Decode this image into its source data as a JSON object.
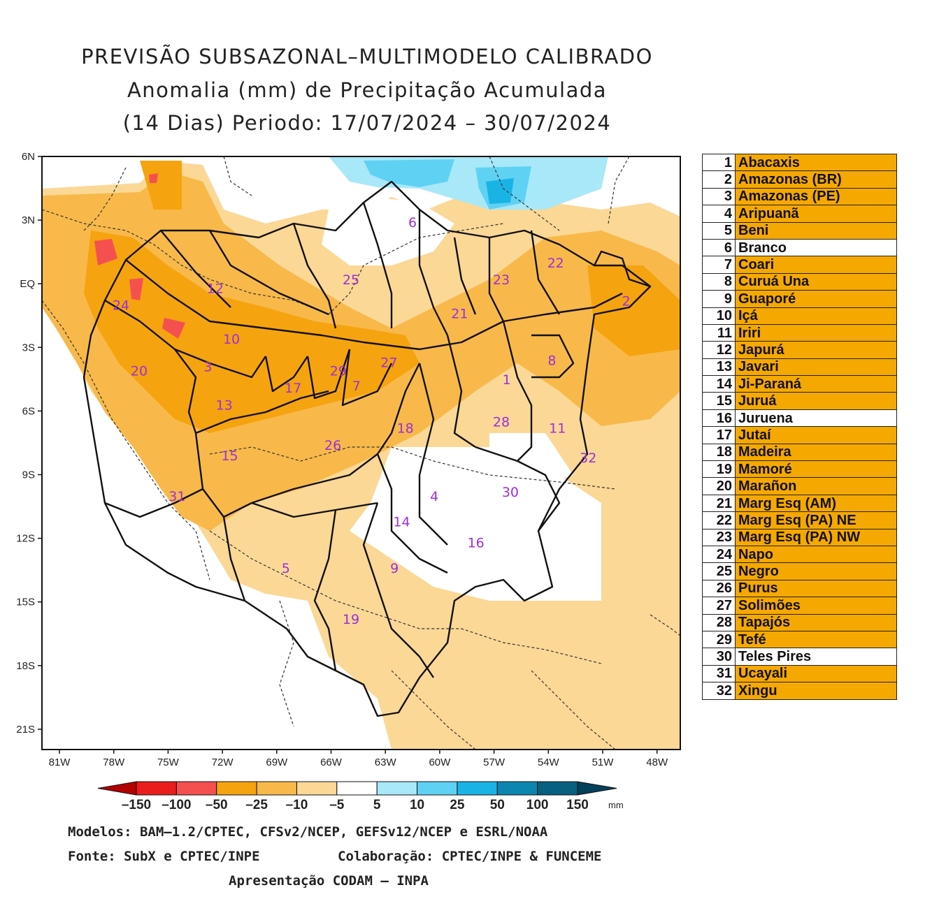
{
  "title": {
    "line1": "PREVISÃO SUBSAZONAL–MULTIMODELO CALIBRADO",
    "line2": "Anomalia (mm) de Precipitação Acumulada",
    "line3": "(14 Dias) Periodo: 17/07/2024 – 30/07/2024"
  },
  "axes": {
    "y_labels": [
      "6N",
      "3N",
      "EQ",
      "3S",
      "6S",
      "9S",
      "12S",
      "15S",
      "18S",
      "21S"
    ],
    "x_labels": [
      "81W",
      "78W",
      "75W",
      "72W",
      "69W",
      "66W",
      "63W",
      "60W",
      "57W",
      "54W",
      "51W",
      "48W"
    ]
  },
  "colorbar": {
    "labels": [
      "–150",
      "–100",
      "–50",
      "–25",
      "–10",
      "–5",
      "5",
      "10",
      "25",
      "50",
      "100",
      "150"
    ],
    "unit": "mm",
    "colors": [
      "#b20000",
      "#ea1c1c",
      "#f45050",
      "#f5a30f",
      "#f8b94a",
      "#fbd896",
      "#ffffff",
      "#a8e8f8",
      "#5fd2f3",
      "#1ab3e6",
      "#0a86b0",
      "#07607f",
      "#03405a"
    ]
  },
  "basin_labels": [
    {
      "id": "1",
      "lon": -56.3,
      "lat": -4.5
    },
    {
      "id": "2",
      "lon": -49.7,
      "lat": -0.8
    },
    {
      "id": "3",
      "lon": -72.8,
      "lat": -3.9
    },
    {
      "id": "4",
      "lon": -60.3,
      "lat": -10.0
    },
    {
      "id": "5",
      "lon": -68.5,
      "lat": -13.4
    },
    {
      "id": "6",
      "lon": -61.5,
      "lat": 2.9
    },
    {
      "id": "7",
      "lon": -64.6,
      "lat": -4.8
    },
    {
      "id": "8",
      "lon": -53.8,
      "lat": -3.6
    },
    {
      "id": "9",
      "lon": -62.5,
      "lat": -13.4
    },
    {
      "id": "10",
      "lon": -71.5,
      "lat": -2.6
    },
    {
      "id": "11",
      "lon": -53.5,
      "lat": -6.8
    },
    {
      "id": "12",
      "lon": -72.4,
      "lat": -0.2
    },
    {
      "id": "13",
      "lon": -71.9,
      "lat": -5.7
    },
    {
      "id": "14",
      "lon": -62.1,
      "lat": -11.2
    },
    {
      "id": "15",
      "lon": -71.6,
      "lat": -8.1
    },
    {
      "id": "16",
      "lon": -58.0,
      "lat": -12.2
    },
    {
      "id": "17",
      "lon": -68.1,
      "lat": -4.9
    },
    {
      "id": "18",
      "lon": -61.9,
      "lat": -6.8
    },
    {
      "id": "19",
      "lon": -64.9,
      "lat": -15.8
    },
    {
      "id": "20",
      "lon": -76.6,
      "lat": -4.1
    },
    {
      "id": "21",
      "lon": -58.9,
      "lat": -1.4
    },
    {
      "id": "22",
      "lon": -53.6,
      "lat": 1.0
    },
    {
      "id": "23",
      "lon": -56.6,
      "lat": 0.2
    },
    {
      "id": "24",
      "lon": -77.6,
      "lat": -1.0
    },
    {
      "id": "25",
      "lon": -64.9,
      "lat": 0.2
    },
    {
      "id": "26",
      "lon": -65.9,
      "lat": -7.6
    },
    {
      "id": "27",
      "lon": -62.8,
      "lat": -3.7
    },
    {
      "id": "28",
      "lon": -56.6,
      "lat": -6.5
    },
    {
      "id": "29",
      "lon": -65.6,
      "lat": -4.1
    },
    {
      "id": "30",
      "lon": -56.1,
      "lat": -9.8
    },
    {
      "id": "31",
      "lon": -74.5,
      "lat": -10.0
    },
    {
      "id": "32",
      "lon": -51.8,
      "lat": -8.2
    }
  ],
  "legend": [
    {
      "n": "1",
      "name": "Abacaxis",
      "color": "#f5a800"
    },
    {
      "n": "2",
      "name": "Amazonas (BR)",
      "color": "#f5a800"
    },
    {
      "n": "3",
      "name": "Amazonas (PE)",
      "color": "#f5a800"
    },
    {
      "n": "4",
      "name": "Aripuanã",
      "color": "#f5a800"
    },
    {
      "n": "5",
      "name": "Beni",
      "color": "#f5a800"
    },
    {
      "n": "6",
      "name": "Branco",
      "color": "#ffffff"
    },
    {
      "n": "7",
      "name": "Coari",
      "color": "#f5a800"
    },
    {
      "n": "8",
      "name": "Curuá Una",
      "color": "#f5a800"
    },
    {
      "n": "9",
      "name": "Guaporé",
      "color": "#f5a800"
    },
    {
      "n": "10",
      "name": "Içá",
      "color": "#f5a800"
    },
    {
      "n": "11",
      "name": "Iriri",
      "color": "#f5a800"
    },
    {
      "n": "12",
      "name": "Japurá",
      "color": "#f5a800"
    },
    {
      "n": "13",
      "name": "Javari",
      "color": "#f5a800"
    },
    {
      "n": "14",
      "name": "Ji-Paraná",
      "color": "#f5a800"
    },
    {
      "n": "15",
      "name": "Juruá",
      "color": "#f5a800"
    },
    {
      "n": "16",
      "name": "Juruena",
      "color": "#ffffff"
    },
    {
      "n": "17",
      "name": "Jutaí",
      "color": "#f5a800"
    },
    {
      "n": "18",
      "name": "Madeira",
      "color": "#f5a800"
    },
    {
      "n": "19",
      "name": "Mamoré",
      "color": "#f5a800"
    },
    {
      "n": "20",
      "name": "Marañon",
      "color": "#f5a800"
    },
    {
      "n": "21",
      "name": "Marg Esq (AM)",
      "color": "#f5a800"
    },
    {
      "n": "22",
      "name": "Marg Esq (PA) NE",
      "color": "#f5a800"
    },
    {
      "n": "23",
      "name": "Marg Esq (PA) NW",
      "color": "#f5a800"
    },
    {
      "n": "24",
      "name": "Napo",
      "color": "#f5a800"
    },
    {
      "n": "25",
      "name": "Negro",
      "color": "#f5a800"
    },
    {
      "n": "26",
      "name": "Purus",
      "color": "#f5a800"
    },
    {
      "n": "27",
      "name": "Solimões",
      "color": "#f5a800"
    },
    {
      "n": "28",
      "name": "Tapajós",
      "color": "#f5a800"
    },
    {
      "n": "29",
      "name": "Tefé",
      "color": "#f5a800"
    },
    {
      "n": "30",
      "name": "Teles Pires",
      "color": "#ffffff"
    },
    {
      "n": "31",
      "name": "Ucayali",
      "color": "#f5a800"
    },
    {
      "n": "32",
      "name": "Xingu",
      "color": "#f5a800"
    }
  ],
  "credits": {
    "models": "Modelos: BAM–1.2/CPTEC, CFSv2/NCEP, GEFSv12/NCEP e ESRL/NOAA",
    "source": "Fonte: SubX e CPTEC/INPE",
    "collab": "Colaboração: CPTEC/INPE & FUNCEME",
    "presentation": "Apresentação CODAM – INPA"
  }
}
